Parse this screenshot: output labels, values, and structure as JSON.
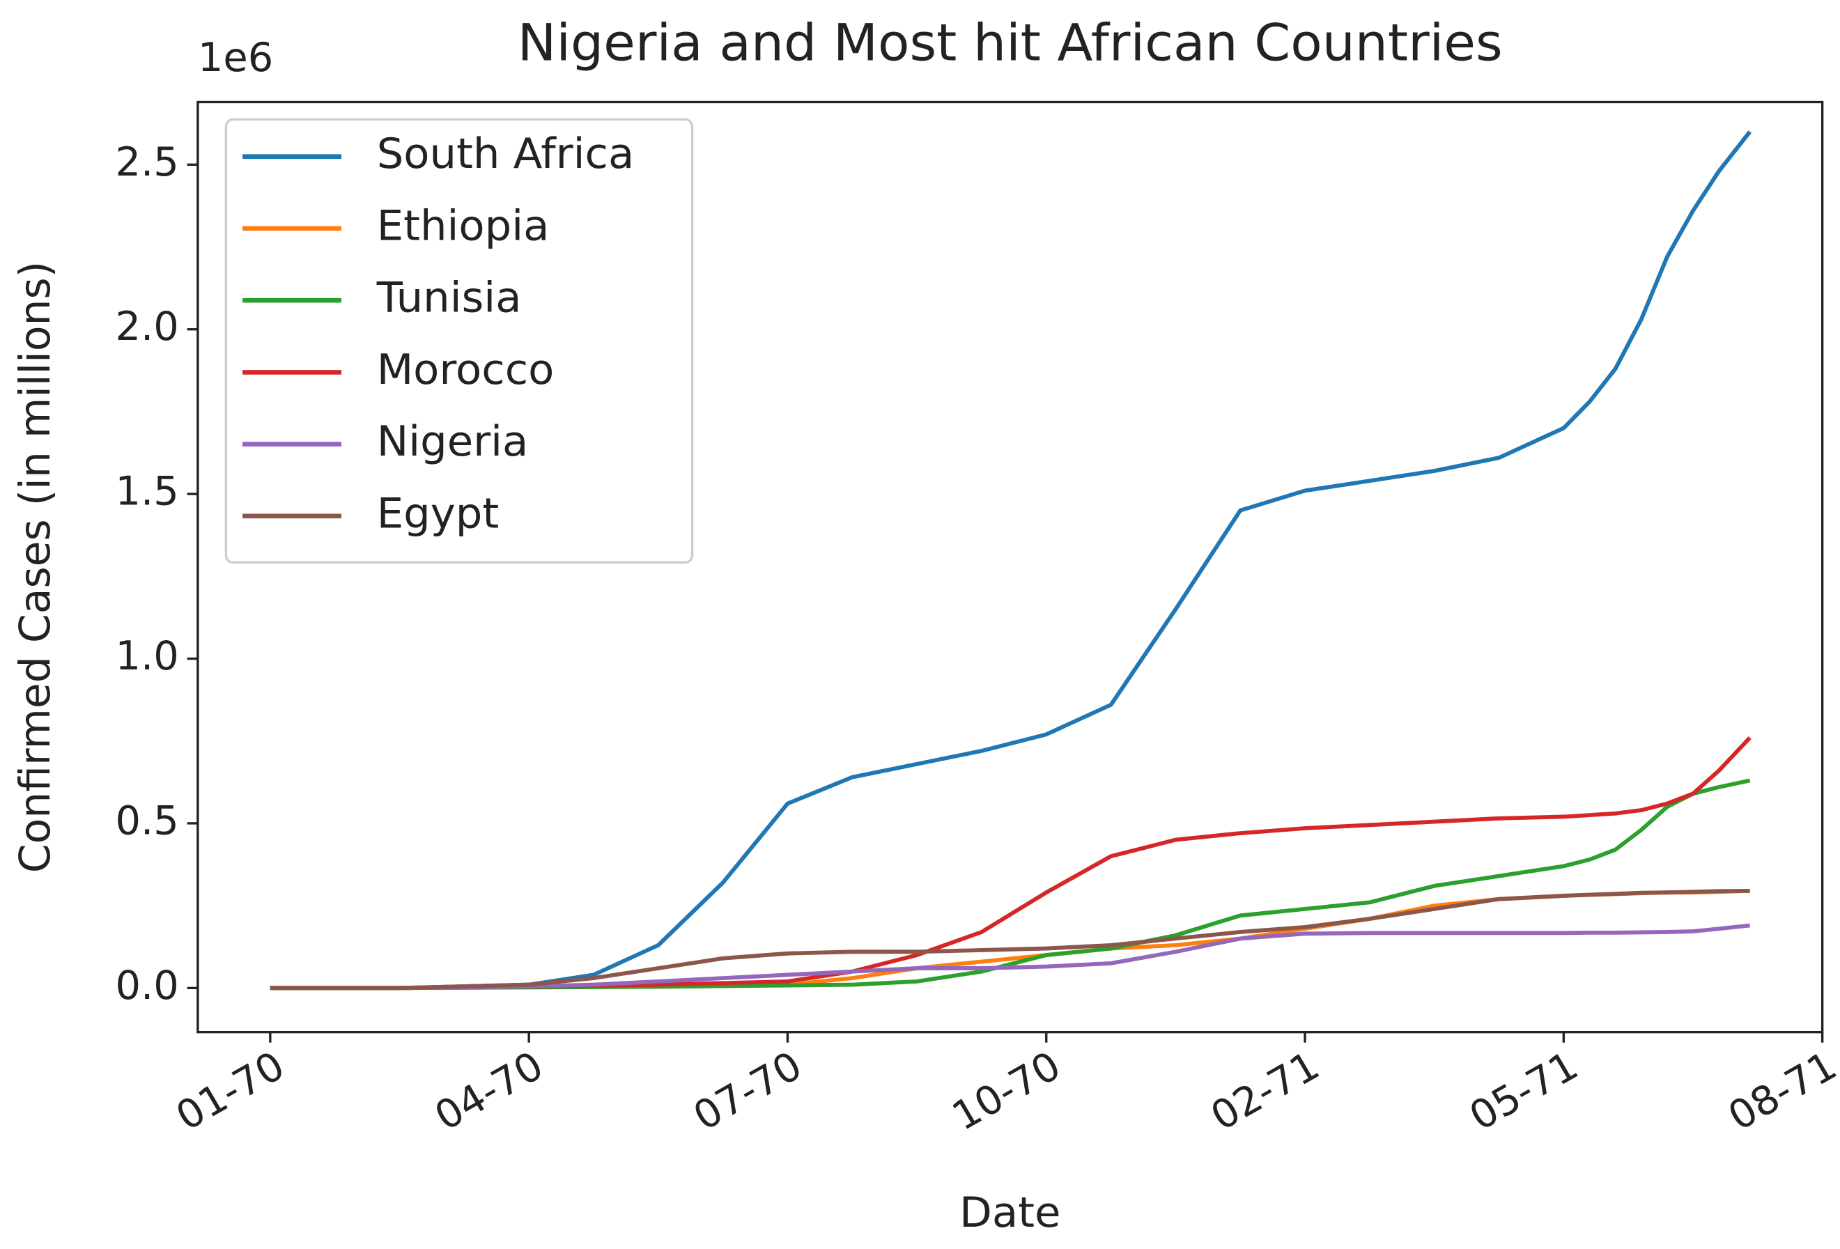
{
  "chart_data": {
    "type": "line",
    "title": "Nigeria and Most hit African Countries",
    "x_label": "Date",
    "y_label": "Confirmed Cases (in millions)",
    "y_offset_label": "1e6",
    "x": [
      0,
      0.5,
      1,
      1.25,
      1.5,
      1.75,
      2,
      2.25,
      2.5,
      2.75,
      3,
      3.25,
      3.5,
      3.75,
      4,
      4.25,
      4.5,
      4.75,
      5,
      5.1,
      5.2,
      5.3,
      5.4,
      5.5,
      5.6,
      5.72
    ],
    "xlim": [
      -0.28,
      6.0
    ],
    "xticks": [
      {
        "value": 0,
        "label": "01-70"
      },
      {
        "value": 1,
        "label": "04-70"
      },
      {
        "value": 2,
        "label": "07-70"
      },
      {
        "value": 3,
        "label": "10-70"
      },
      {
        "value": 4,
        "label": "02-71"
      },
      {
        "value": 5,
        "label": "05-71"
      },
      {
        "value": 6,
        "label": "08-71"
      }
    ],
    "ylim": [
      -0.134,
      2.69
    ],
    "yticks": [
      {
        "value": 0,
        "label": "0.0"
      },
      0.5,
      {
        "value": 1,
        "label": "1.0"
      },
      1.5,
      {
        "value": 2,
        "label": "2.0"
      },
      2.5
    ],
    "legend": "upper left",
    "series": [
      {
        "name": "South Africa",
        "color": "#1f77b4",
        "values": [
          0,
          0,
          0.01,
          0.04,
          0.13,
          0.32,
          0.56,
          0.64,
          0.68,
          0.72,
          0.77,
          0.86,
          1.15,
          1.45,
          1.51,
          1.54,
          1.57,
          1.61,
          1.7,
          1.78,
          1.88,
          2.03,
          2.22,
          2.36,
          2.48,
          2.6
        ]
      },
      {
        "name": "Ethiopia",
        "color": "#ff7f0e",
        "values": [
          0,
          0,
          0.002,
          0.003,
          0.004,
          0.006,
          0.01,
          0.03,
          0.06,
          0.08,
          0.1,
          0.12,
          0.13,
          0.15,
          0.18,
          0.21,
          0.25,
          0.27,
          0.28,
          0.283,
          0.285,
          0.288,
          0.29,
          0.29,
          0.292,
          0.295
        ]
      },
      {
        "name": "Tunisia",
        "color": "#2ca02c",
        "values": [
          0,
          0,
          0.002,
          0.003,
          0.004,
          0.006,
          0.008,
          0.01,
          0.02,
          0.05,
          0.1,
          0.12,
          0.16,
          0.22,
          0.24,
          0.26,
          0.31,
          0.34,
          0.37,
          0.39,
          0.42,
          0.48,
          0.55,
          0.59,
          0.61,
          0.63
        ]
      },
      {
        "name": "Morocco",
        "color": "#d62728",
        "values": [
          0,
          0,
          0.005,
          0.007,
          0.01,
          0.015,
          0.02,
          0.05,
          0.1,
          0.17,
          0.29,
          0.4,
          0.45,
          0.47,
          0.485,
          0.495,
          0.505,
          0.515,
          0.52,
          0.525,
          0.53,
          0.54,
          0.56,
          0.59,
          0.66,
          0.76
        ]
      },
      {
        "name": "Nigeria",
        "color": "#9467bd",
        "values": [
          0,
          0,
          0.005,
          0.01,
          0.02,
          0.03,
          0.04,
          0.05,
          0.06,
          0.06,
          0.065,
          0.075,
          0.11,
          0.15,
          0.165,
          0.167,
          0.167,
          0.167,
          0.167,
          0.168,
          0.168,
          0.169,
          0.17,
          0.172,
          0.18,
          0.19
        ]
      },
      {
        "name": "Egypt",
        "color": "#8c564b",
        "values": [
          0,
          0,
          0.01,
          0.03,
          0.06,
          0.09,
          0.105,
          0.11,
          0.11,
          0.115,
          0.12,
          0.13,
          0.15,
          0.17,
          0.185,
          0.21,
          0.24,
          0.27,
          0.28,
          0.283,
          0.286,
          0.289,
          0.29,
          0.292,
          0.294,
          0.295
        ]
      }
    ]
  }
}
